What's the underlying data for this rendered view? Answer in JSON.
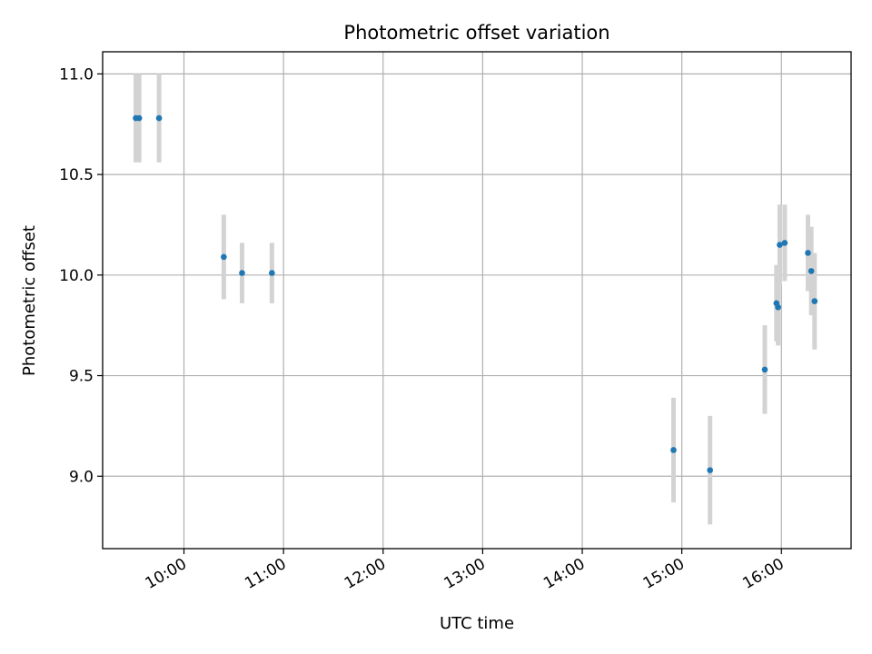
{
  "chart_data": {
    "type": "scatter",
    "title": "Photometric offset variation",
    "xlabel": "UTC time",
    "ylabel": "Photometric offset",
    "xlim": [
      "09:11",
      "16:42"
    ],
    "ylim": [
      8.64,
      11.11
    ],
    "x_ticks": [
      "10:00",
      "11:00",
      "12:00",
      "13:00",
      "14:00",
      "15:00",
      "16:00"
    ],
    "y_ticks": [
      "9.0",
      "9.5",
      "10.0",
      "10.5",
      "11.0"
    ],
    "grid": true,
    "legend": "none",
    "colors": {
      "point": "#1f77b4",
      "errorbar": "#d3d3d3",
      "grid": "#b0b0b0"
    },
    "points": [
      {
        "x": "09:31",
        "y": 10.78,
        "yerr": 0.22
      },
      {
        "x": "09:33",
        "y": 10.78,
        "yerr": 0.22
      },
      {
        "x": "09:45",
        "y": 10.78,
        "yerr": 0.22
      },
      {
        "x": "10:24",
        "y": 10.09,
        "yerr": 0.21
      },
      {
        "x": "10:35",
        "y": 10.01,
        "yerr": 0.15
      },
      {
        "x": "10:53",
        "y": 10.01,
        "yerr": 0.15
      },
      {
        "x": "14:55",
        "y": 9.13,
        "yerr": 0.26
      },
      {
        "x": "15:17",
        "y": 9.03,
        "yerr": 0.27
      },
      {
        "x": "15:50",
        "y": 9.53,
        "yerr": 0.22
      },
      {
        "x": "15:57",
        "y": 9.86,
        "yerr": 0.19
      },
      {
        "x": "15:58",
        "y": 9.84,
        "yerr": 0.19
      },
      {
        "x": "15:59",
        "y": 10.15,
        "yerr": 0.2
      },
      {
        "x": "16:02",
        "y": 10.16,
        "yerr": 0.19
      },
      {
        "x": "16:16",
        "y": 10.11,
        "yerr": 0.19
      },
      {
        "x": "16:18",
        "y": 10.02,
        "yerr": 0.22
      },
      {
        "x": "16:20",
        "y": 9.87,
        "yerr": 0.24
      }
    ]
  }
}
